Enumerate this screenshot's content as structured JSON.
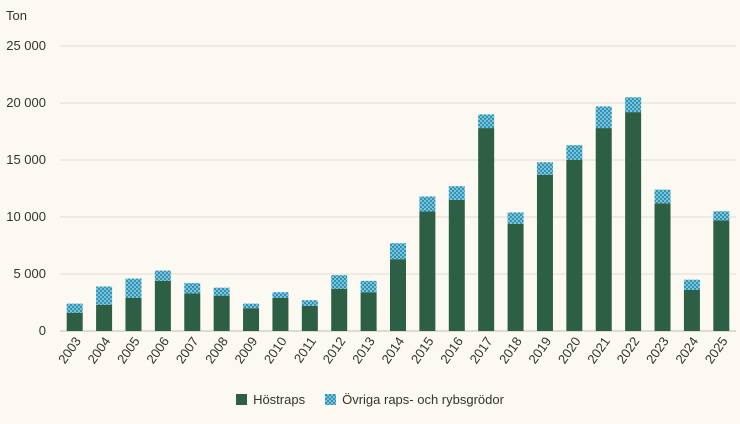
{
  "chart_data": {
    "type": "bar",
    "stacked": true,
    "unit_label": "Ton",
    "categories": [
      "2003",
      "2004",
      "2005",
      "2006",
      "2007",
      "2008",
      "2009",
      "2010",
      "2011",
      "2012",
      "2013",
      "2014",
      "2015",
      "2016",
      "2017",
      "2018",
      "2019",
      "2020",
      "2021",
      "2022",
      "2023",
      "2024",
      "2025"
    ],
    "series": [
      {
        "name": "Höstraps",
        "color": "#2d5f45",
        "pattern": "solid",
        "values": [
          1600,
          2300,
          2900,
          4400,
          3300,
          3100,
          2000,
          2900,
          2200,
          3700,
          3400,
          6300,
          10500,
          11500,
          17800,
          9400,
          13700,
          15000,
          17800,
          19200,
          11200,
          3600,
          9700
        ]
      },
      {
        "name": "Övriga raps- och rybsgrödor",
        "color": "#3a9fbf",
        "pattern": "checker",
        "values": [
          800,
          1600,
          1700,
          900,
          900,
          700,
          400,
          500,
          500,
          1200,
          1000,
          1400,
          1300,
          1200,
          1200,
          1000,
          1100,
          1300,
          1900,
          1300,
          1200,
          900,
          800
        ]
      }
    ],
    "ylim": [
      0,
      25000
    ],
    "yticks": [
      0,
      5000,
      10000,
      15000,
      20000,
      25000
    ],
    "ytick_labels": [
      "0",
      "5 000",
      "10 000",
      "15 000",
      "20 000",
      "25 000"
    ],
    "grid": true,
    "legend_position": "bottom"
  }
}
